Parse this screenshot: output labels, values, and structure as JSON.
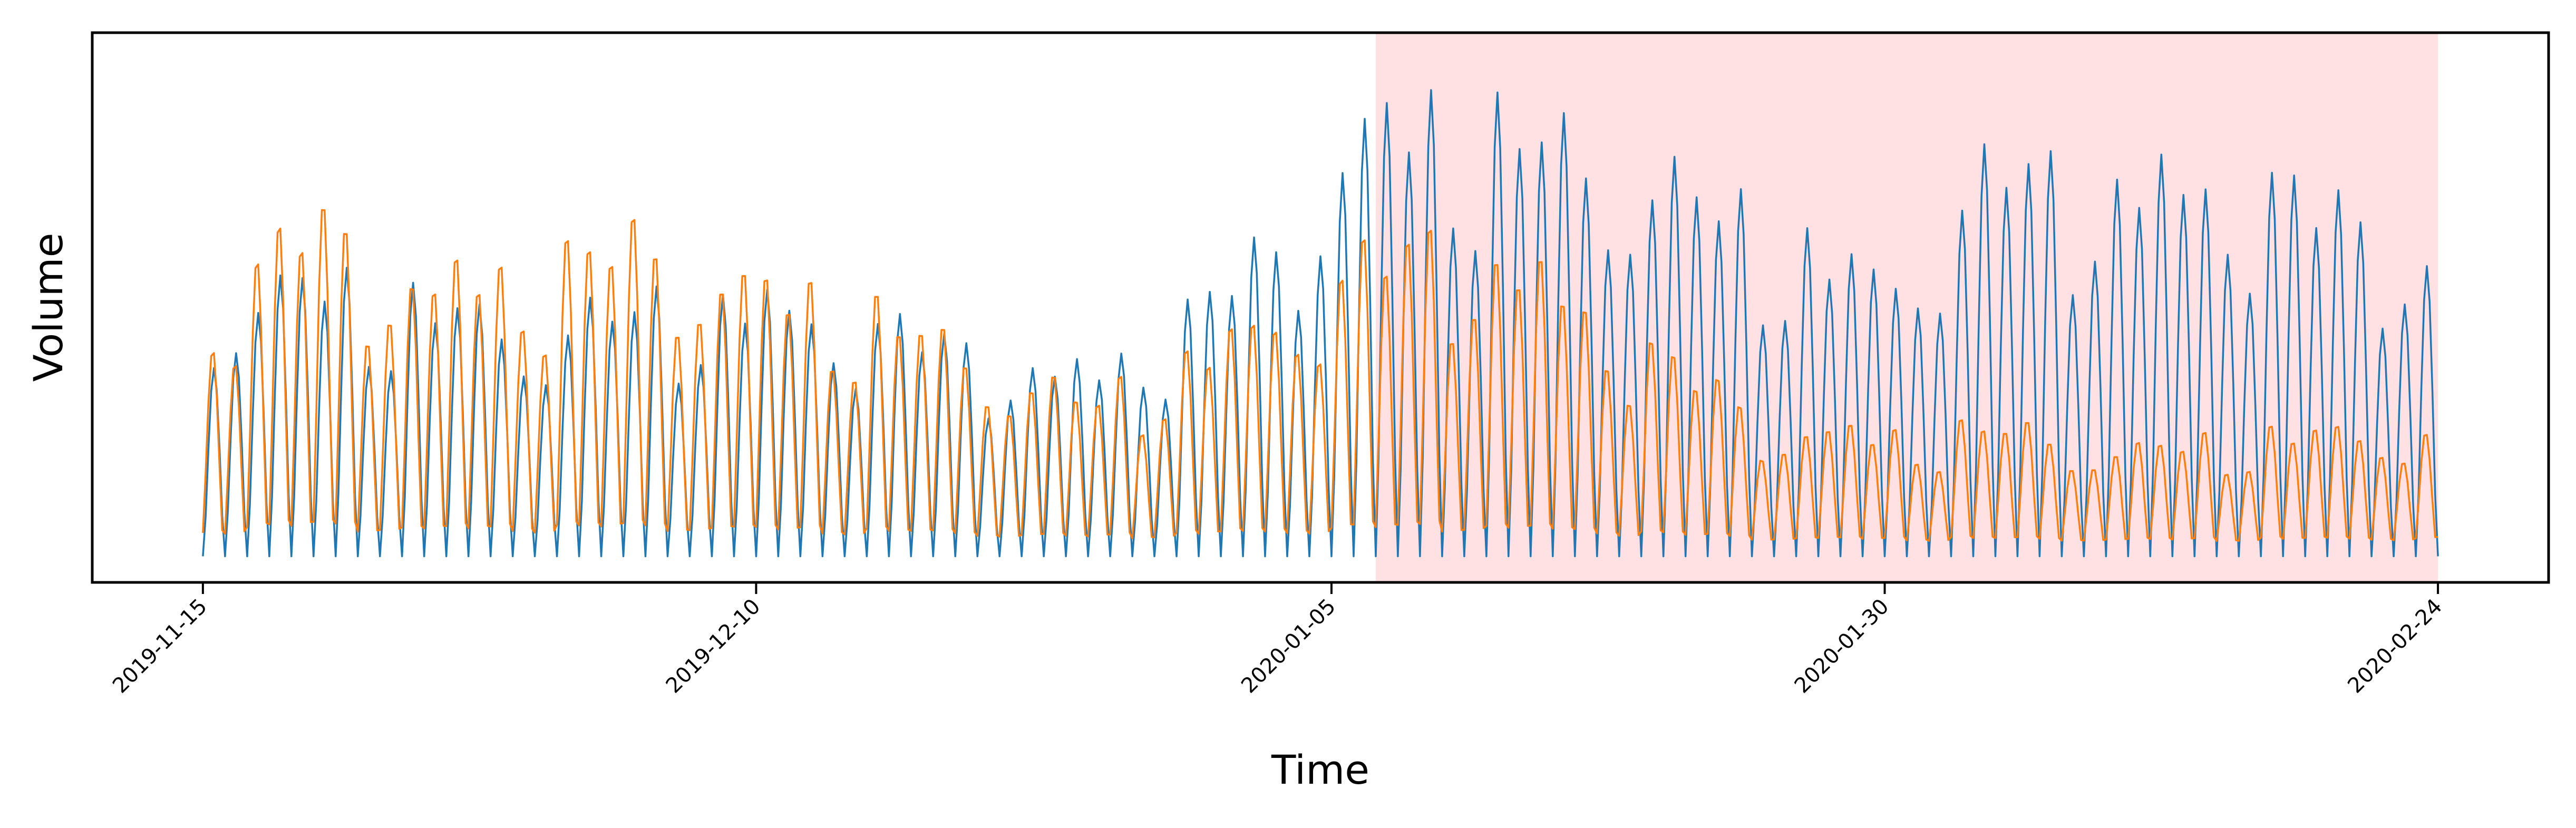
{
  "chart_data": {
    "type": "line",
    "xlabel": "Time",
    "ylabel": "Volume",
    "x_ticks": [
      "2019-11-15",
      "2019-12-10",
      "2020-01-05",
      "2020-01-30",
      "2020-02-24"
    ],
    "x_range": [
      "2019-11-10",
      "2020-02-29"
    ],
    "highlight_region": {
      "start": "2020-01-07",
      "end": "2020-02-24",
      "color": "#ffe1e4"
    },
    "y_ticks_shown": false,
    "grid": false,
    "legend": "none",
    "sampling": "hourly, daily cycle",
    "series": [
      {
        "color": "#1f77b4",
        "daily_peak": [
          [
            "2019-11-15",
            0.55
          ],
          [
            "2019-11-20",
            0.6
          ],
          [
            "2019-11-25",
            0.55
          ],
          [
            "2019-11-30",
            0.5
          ],
          [
            "2019-12-05",
            0.55
          ],
          [
            "2019-12-10",
            0.55
          ],
          [
            "2019-12-15",
            0.52
          ],
          [
            "2019-12-20",
            0.45
          ],
          [
            "2019-12-25",
            0.4
          ],
          [
            "2019-12-30",
            0.55
          ],
          [
            "2020-01-03",
            0.7
          ],
          [
            "2020-01-06",
            0.92
          ],
          [
            "2020-01-10",
            0.95
          ],
          [
            "2020-01-15",
            0.9
          ],
          [
            "2020-01-20",
            0.82
          ],
          [
            "2020-01-25",
            0.7
          ],
          [
            "2020-01-30",
            0.6
          ],
          [
            "2020-02-04",
            0.85
          ],
          [
            "2020-02-10",
            0.8
          ],
          [
            "2020-02-16",
            0.82
          ],
          [
            "2020-02-24",
            0.65
          ]
        ],
        "daily_trough": 0.02
      },
      {
        "color": "#ff7f0e",
        "daily_peak": [
          [
            "2019-11-15",
            0.55
          ],
          [
            "2019-11-20",
            0.75
          ],
          [
            "2019-11-25",
            0.6
          ],
          [
            "2019-11-30",
            0.65
          ],
          [
            "2019-12-05",
            0.7
          ],
          [
            "2019-12-10",
            0.6
          ],
          [
            "2019-12-15",
            0.55
          ],
          [
            "2019-12-20",
            0.45
          ],
          [
            "2019-12-25",
            0.35
          ],
          [
            "2019-12-30",
            0.45
          ],
          [
            "2020-01-03",
            0.55
          ],
          [
            "2020-01-06",
            0.65
          ],
          [
            "2020-01-10",
            0.7
          ],
          [
            "2020-01-15",
            0.6
          ],
          [
            "2020-01-20",
            0.45
          ],
          [
            "2020-01-25",
            0.3
          ],
          [
            "2020-01-30",
            0.28
          ],
          [
            "2020-02-04",
            0.3
          ],
          [
            "2020-02-10",
            0.25
          ],
          [
            "2020-02-16",
            0.28
          ],
          [
            "2020-02-24",
            0.3
          ]
        ],
        "daily_trough": 0.04
      }
    ],
    "y_range": [
      0,
      1
    ]
  }
}
